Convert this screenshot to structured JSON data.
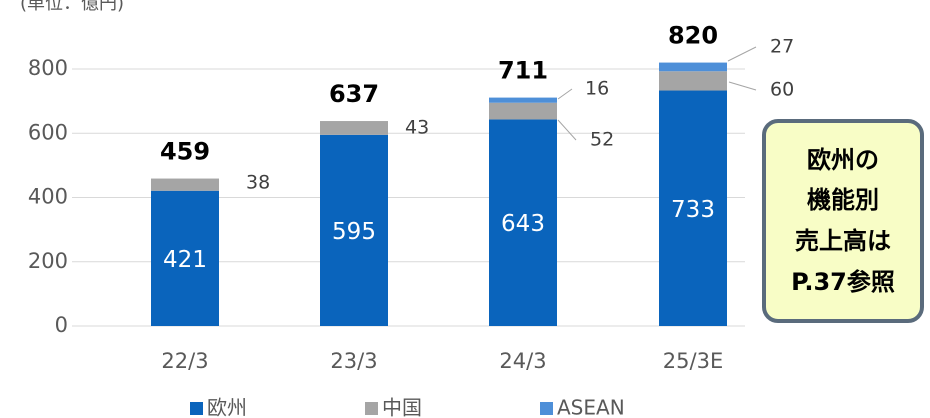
{
  "chart_data": {
    "type": "stacked_bar",
    "unit": "(単位：億円)",
    "categories": [
      "22/3",
      "23/3",
      "24/3",
      "25/3E"
    ],
    "series": [
      {
        "name": "欧州",
        "color": "#0a64bc",
        "values": [
          421,
          595,
          643,
          733
        ]
      },
      {
        "name": "中国",
        "color": "#a5a5a5",
        "values": [
          38,
          43,
          52,
          60
        ]
      },
      {
        "name": "ASEAN",
        "color": "#4e8fd8",
        "values": [
          null,
          null,
          16,
          27
        ]
      }
    ],
    "totals": [
      459,
      637,
      711,
      820
    ],
    "ylim": [
      0,
      800
    ],
    "yticks": [
      0,
      200,
      400,
      600,
      800
    ],
    "grid": true,
    "legend": "bottom",
    "annotation": [
      "欧州の",
      "機能別",
      "売上高は",
      "P.37参照"
    ]
  }
}
